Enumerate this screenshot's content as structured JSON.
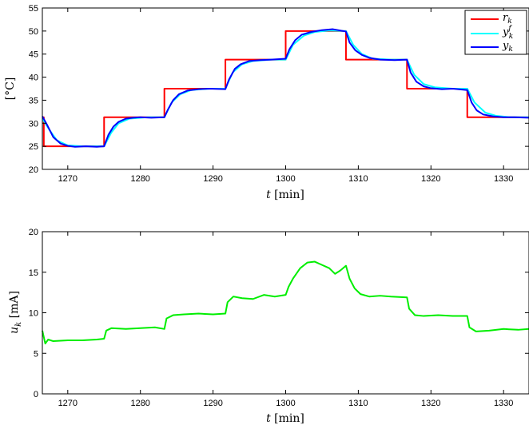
{
  "chart_data": [
    {
      "type": "line",
      "ylabel": "[°C]",
      "xlabel": "t [min]",
      "xlim": [
        1266.5,
        1333.5
      ],
      "ylim": [
        20,
        55
      ],
      "xticks": [
        1270,
        1280,
        1290,
        1300,
        1310,
        1320,
        1330
      ],
      "yticks": [
        20,
        25,
        30,
        35,
        40,
        45,
        50,
        55
      ],
      "grid": false,
      "legend": "top-right",
      "series": [
        {
          "name": "r_k",
          "color": "#ff0000",
          "style": "step",
          "x": [
            1266.5,
            1266.7,
            1266.7,
            1275.0,
            1275.0,
            1283.3,
            1283.3,
            1291.7,
            1291.7,
            1300.0,
            1300.0,
            1308.3,
            1308.3,
            1316.7,
            1316.7,
            1325.0,
            1325.0,
            1333.5
          ],
          "y": [
            31.3,
            31.3,
            25.0,
            25.0,
            31.3,
            31.3,
            37.5,
            37.5,
            43.8,
            43.8,
            50.0,
            50.0,
            43.8,
            43.8,
            37.5,
            37.5,
            31.3,
            31.3
          ]
        },
        {
          "name": "y_k^f",
          "color": "#00ffff",
          "x": [
            1266.5,
            1267.5,
            1268.5,
            1270,
            1272,
            1275,
            1276,
            1277,
            1278.5,
            1281,
            1283.3,
            1284.3,
            1285.5,
            1287,
            1289.5,
            1291.7,
            1292.7,
            1294,
            1295.5,
            1298,
            1300,
            1301,
            1302.5,
            1304,
            1306,
            1308.3,
            1309.3,
            1310.5,
            1312,
            1314.5,
            1316.7,
            1317.7,
            1319,
            1320.5,
            1323,
            1325,
            1326,
            1327.5,
            1329,
            1331,
            1333.5
          ],
          "y": [
            31.0,
            28.5,
            26.3,
            25.2,
            25.0,
            25.0,
            28.0,
            30.0,
            31.0,
            31.3,
            31.3,
            34.5,
            36.3,
            37.2,
            37.5,
            37.5,
            41.0,
            42.8,
            43.5,
            43.8,
            43.8,
            47.0,
            49.0,
            49.8,
            50.1,
            50.0,
            47.0,
            45.0,
            44.0,
            43.8,
            43.8,
            40.5,
            38.5,
            37.8,
            37.5,
            37.5,
            34.5,
            32.3,
            31.6,
            31.3,
            31.3
          ]
        },
        {
          "name": "y_k",
          "color": "#0000ff",
          "x": [
            1266.5,
            1267.2,
            1268,
            1269,
            1270,
            1271,
            1272.5,
            1274,
            1275,
            1275.6,
            1276.3,
            1277,
            1278,
            1279,
            1280,
            1281.5,
            1283.3,
            1283.8,
            1284.5,
            1285.3,
            1286.5,
            1288,
            1289.5,
            1291.7,
            1292.2,
            1293,
            1293.8,
            1295,
            1296.5,
            1298,
            1300,
            1300.5,
            1301.3,
            1302.2,
            1303.5,
            1305,
            1306.5,
            1308.3,
            1308.8,
            1309.6,
            1310.5,
            1311.5,
            1313,
            1315,
            1316.7,
            1317.2,
            1318,
            1319,
            1320,
            1321.5,
            1323,
            1325,
            1325.6,
            1326.3,
            1327.2,
            1328.5,
            1330,
            1331.5,
            1333.5
          ],
          "y": [
            31.5,
            29.5,
            27.0,
            25.6,
            25.1,
            24.9,
            25.0,
            24.9,
            25.0,
            27.5,
            29.3,
            30.3,
            31.0,
            31.2,
            31.3,
            31.2,
            31.3,
            33.0,
            35.0,
            36.3,
            37.1,
            37.4,
            37.5,
            37.4,
            39.5,
            41.8,
            42.8,
            43.5,
            43.7,
            43.8,
            44.0,
            46.0,
            48.0,
            49.2,
            49.8,
            50.2,
            50.4,
            49.9,
            47.5,
            45.8,
            44.8,
            44.2,
            43.8,
            43.7,
            43.8,
            41.0,
            39.0,
            38.0,
            37.6,
            37.4,
            37.5,
            37.2,
            34.5,
            32.8,
            31.9,
            31.5,
            31.3,
            31.3,
            31.2
          ]
        }
      ]
    },
    {
      "type": "line",
      "ylabel": "u_k [mA]",
      "xlabel": "t [min]",
      "xlim": [
        1266.5,
        1333.5
      ],
      "ylim": [
        0,
        20
      ],
      "xticks": [
        1270,
        1280,
        1290,
        1300,
        1310,
        1320,
        1330
      ],
      "yticks": [
        0,
        5,
        10,
        15,
        20
      ],
      "grid": false,
      "series": [
        {
          "name": "u_k",
          "color": "#00ee00",
          "x": [
            1266.5,
            1266.9,
            1267.3,
            1268,
            1270,
            1272,
            1274,
            1275.0,
            1275.3,
            1276,
            1278,
            1280,
            1282,
            1283.3,
            1283.6,
            1284.5,
            1286,
            1288,
            1290,
            1291.7,
            1292.0,
            1292.8,
            1294,
            1295.5,
            1297,
            1298.5,
            1300.0,
            1300.4,
            1301,
            1302,
            1303,
            1304,
            1305,
            1306,
            1306.8,
            1307.5,
            1308.3,
            1308.8,
            1309.5,
            1310.3,
            1311.5,
            1313,
            1314.5,
            1316.7,
            1317.0,
            1317.8,
            1319,
            1321,
            1323,
            1325.0,
            1325.3,
            1326.2,
            1328,
            1330,
            1332,
            1333.5
          ],
          "y": [
            7.8,
            6.2,
            6.7,
            6.5,
            6.6,
            6.6,
            6.7,
            6.8,
            7.8,
            8.1,
            8.0,
            8.1,
            8.2,
            8.0,
            9.3,
            9.7,
            9.8,
            9.9,
            9.8,
            9.9,
            11.3,
            12.0,
            11.8,
            11.7,
            12.2,
            12.0,
            12.2,
            13.2,
            14.2,
            15.5,
            16.2,
            16.3,
            15.9,
            15.5,
            14.8,
            15.2,
            15.8,
            14.2,
            13.0,
            12.3,
            12.0,
            12.1,
            12.0,
            11.9,
            10.5,
            9.7,
            9.6,
            9.7,
            9.6,
            9.6,
            8.2,
            7.7,
            7.8,
            8.0,
            7.9,
            8.0
          ]
        }
      ]
    }
  ]
}
